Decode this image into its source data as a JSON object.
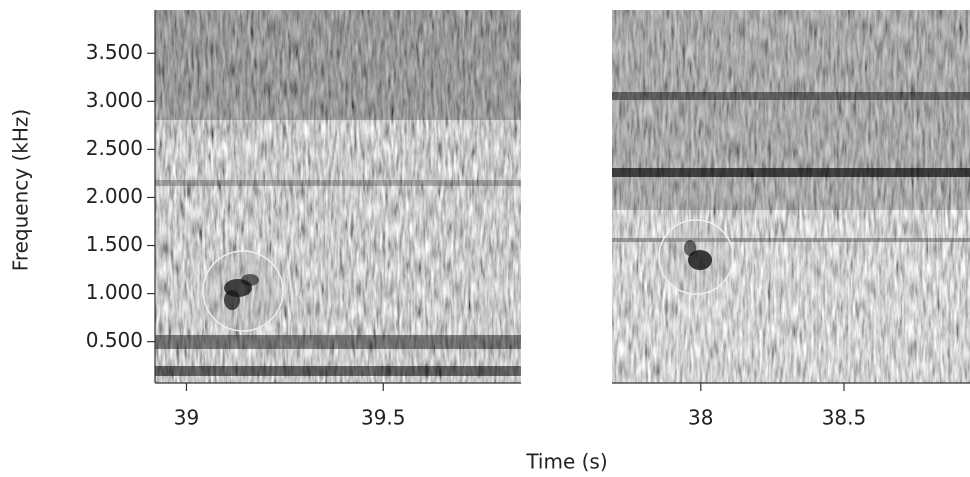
{
  "xlabel": "Time (s)",
  "chart_data": [
    {
      "type": "spectrogram",
      "ylabel": "Frequency (kHz)",
      "xlim": [
        38.92,
        39.85
      ],
      "xticks": [
        39,
        39.5
      ],
      "ylim": [
        0.07,
        3.95
      ],
      "yticks": [
        {
          "value": 0.5,
          "label": "0.500"
        },
        {
          "value": 1,
          "label": "1.000"
        },
        {
          "value": 1.5,
          "label": "1.500"
        },
        {
          "value": 2,
          "label": "2.000"
        },
        {
          "value": 2.5,
          "label": "2.500"
        },
        {
          "value": 3,
          "label": "3.000"
        },
        {
          "value": 3.5,
          "label": "3.500"
        }
      ]
    },
    {
      "type": "spectrogram",
      "xlim": [
        37.69,
        38.94
      ],
      "xticks": [
        38,
        38.5
      ],
      "ylim": [
        0.07,
        3.95
      ]
    }
  ]
}
